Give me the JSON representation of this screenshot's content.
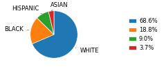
{
  "chart_data": {
    "type": "pie",
    "categories": [
      "WHITE",
      "BLACK",
      "HISPANIC",
      "ASIAN"
    ],
    "values": [
      68.6,
      18.8,
      9.0,
      3.7
    ],
    "value_labels": [
      "68.6%",
      "18.8%",
      "9.0%",
      "3.7%"
    ],
    "legend": "right"
  }
}
